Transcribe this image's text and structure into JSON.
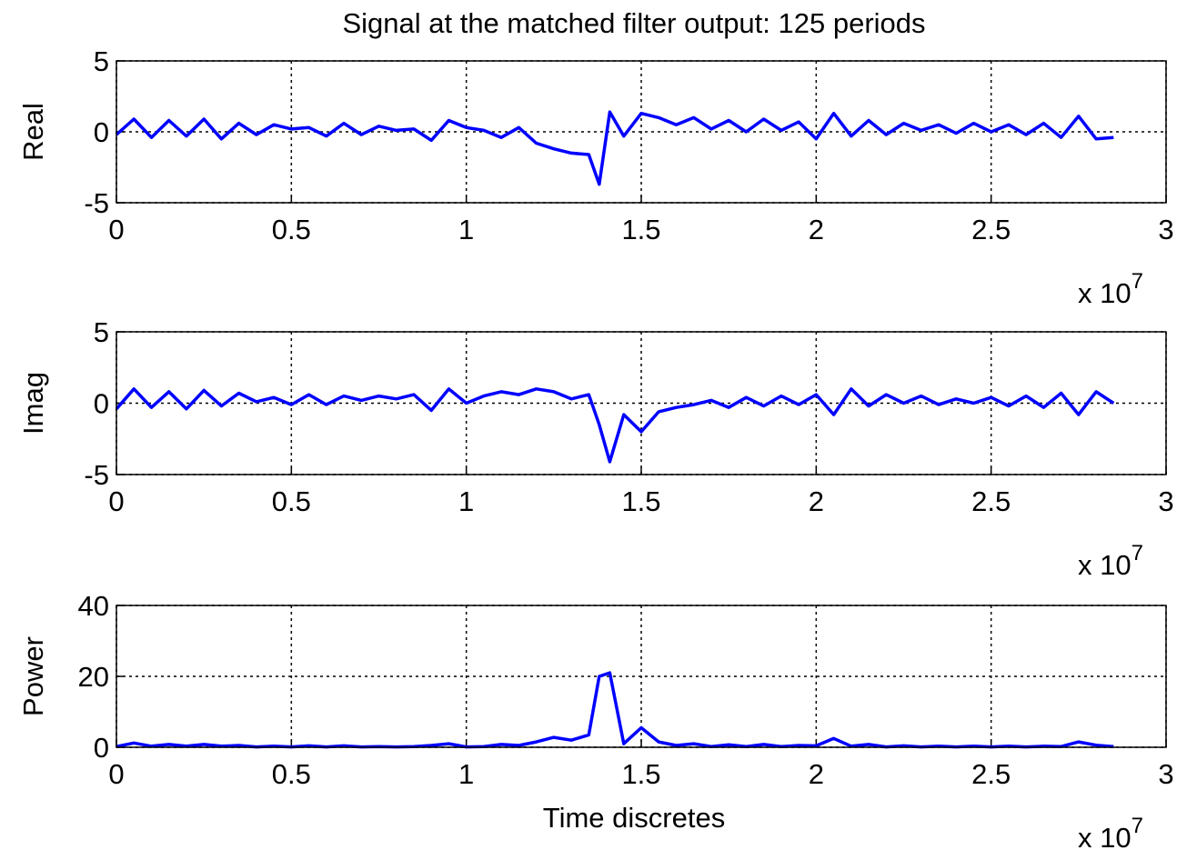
{
  "chart_data": [
    {
      "type": "line",
      "title": "Signal at the matched filter output: 125 periods",
      "ylabel": "Real",
      "x": [
        0,
        0.05,
        0.1,
        0.15,
        0.2,
        0.25,
        0.3,
        0.35,
        0.4,
        0.45,
        0.5,
        0.55,
        0.6,
        0.65,
        0.7,
        0.75,
        0.8,
        0.85,
        0.9,
        0.95,
        1.0,
        1.05,
        1.1,
        1.15,
        1.2,
        1.25,
        1.3,
        1.35,
        1.38,
        1.41,
        1.45,
        1.5,
        1.55,
        1.6,
        1.65,
        1.7,
        1.75,
        1.8,
        1.85,
        1.9,
        1.95,
        2.0,
        2.05,
        2.1,
        2.15,
        2.2,
        2.25,
        2.3,
        2.35,
        2.4,
        2.45,
        2.5,
        2.55,
        2.6,
        2.65,
        2.7,
        2.75,
        2.8,
        2.85
      ],
      "values": [
        -0.2,
        0.9,
        -0.4,
        0.8,
        -0.3,
        0.9,
        -0.5,
        0.6,
        -0.2,
        0.5,
        0.2,
        0.3,
        -0.3,
        0.6,
        -0.2,
        0.4,
        0.1,
        0.2,
        -0.6,
        0.8,
        0.3,
        0.1,
        -0.4,
        0.3,
        -0.8,
        -1.2,
        -1.5,
        -1.6,
        -3.7,
        1.4,
        -0.3,
        1.3,
        1.0,
        0.5,
        1.0,
        0.2,
        0.8,
        0,
        0.9,
        0.1,
        0.7,
        -0.5,
        1.3,
        -0.3,
        0.8,
        -0.2,
        0.6,
        0.1,
        0.5,
        -0.1,
        0.6,
        0,
        0.5,
        -0.2,
        0.6,
        -0.4,
        1.1,
        -0.5,
        -0.4
      ],
      "color": "#0000ff",
      "xlim": [
        0,
        3
      ],
      "xticks": [
        0,
        0.5,
        1,
        1.5,
        2,
        2.5,
        3
      ],
      "ylim": [
        -5,
        5
      ],
      "yticks": [
        -5,
        0,
        5
      ],
      "grid": true,
      "x_multiplier": "x 10",
      "x_exponent": "7"
    },
    {
      "type": "line",
      "ylabel": "Imag",
      "x": [
        0,
        0.05,
        0.1,
        0.15,
        0.2,
        0.25,
        0.3,
        0.35,
        0.4,
        0.45,
        0.5,
        0.55,
        0.6,
        0.65,
        0.7,
        0.75,
        0.8,
        0.85,
        0.9,
        0.95,
        1.0,
        1.05,
        1.1,
        1.15,
        1.2,
        1.25,
        1.3,
        1.35,
        1.38,
        1.41,
        1.45,
        1.5,
        1.55,
        1.6,
        1.65,
        1.7,
        1.75,
        1.8,
        1.85,
        1.9,
        1.95,
        2.0,
        2.05,
        2.1,
        2.15,
        2.2,
        2.25,
        2.3,
        2.35,
        2.4,
        2.45,
        2.5,
        2.55,
        2.6,
        2.65,
        2.7,
        2.75,
        2.8,
        2.85
      ],
      "values": [
        -0.4,
        1.0,
        -0.3,
        0.8,
        -0.4,
        0.9,
        -0.2,
        0.7,
        0.1,
        0.4,
        -0.1,
        0.6,
        -0.1,
        0.5,
        0.2,
        0.5,
        0.3,
        0.6,
        -0.5,
        1.0,
        0,
        0.5,
        0.8,
        0.6,
        1.0,
        0.8,
        0.3,
        0.6,
        -1.5,
        -4.1,
        -0.8,
        -2.0,
        -0.6,
        -0.3,
        -0.1,
        0.2,
        -0.3,
        0.4,
        -0.2,
        0.5,
        -0.1,
        0.6,
        -0.8,
        1.0,
        -0.2,
        0.6,
        0,
        0.5,
        -0.1,
        0.3,
        0,
        0.4,
        -0.2,
        0.5,
        -0.3,
        0.7,
        -0.8,
        0.8,
        0
      ],
      "color": "#0000ff",
      "xlim": [
        0,
        3
      ],
      "xticks": [
        0,
        0.5,
        1,
        1.5,
        2,
        2.5,
        3
      ],
      "ylim": [
        -5,
        5
      ],
      "yticks": [
        -5,
        0,
        5
      ],
      "grid": true,
      "x_multiplier": "x 10",
      "x_exponent": "7"
    },
    {
      "type": "line",
      "ylabel": "Power",
      "xlabel": "Time discretes",
      "x": [
        0,
        0.05,
        0.1,
        0.15,
        0.2,
        0.25,
        0.3,
        0.35,
        0.4,
        0.45,
        0.5,
        0.55,
        0.6,
        0.65,
        0.7,
        0.75,
        0.8,
        0.85,
        0.9,
        0.95,
        1.0,
        1.05,
        1.1,
        1.15,
        1.2,
        1.25,
        1.3,
        1.35,
        1.38,
        1.41,
        1.45,
        1.5,
        1.55,
        1.6,
        1.65,
        1.7,
        1.75,
        1.8,
        1.85,
        1.9,
        1.95,
        2.0,
        2.05,
        2.1,
        2.15,
        2.2,
        2.25,
        2.3,
        2.35,
        2.4,
        2.45,
        2.5,
        2.55,
        2.6,
        2.65,
        2.7,
        2.75,
        2.8,
        2.85
      ],
      "values": [
        0.2,
        1.2,
        0.3,
        0.8,
        0.3,
        0.8,
        0.3,
        0.5,
        0.1,
        0.3,
        0.1,
        0.4,
        0.1,
        0.4,
        0.1,
        0.2,
        0.1,
        0.2,
        0.5,
        1.0,
        0.1,
        0.2,
        0.8,
        0.5,
        1.5,
        2.8,
        2.0,
        3.5,
        20,
        21,
        1.0,
        5.5,
        1.5,
        0.5,
        1.0,
        0.2,
        0.7,
        0.2,
        0.8,
        0.2,
        0.5,
        0.4,
        2.5,
        0.3,
        0.8,
        0.1,
        0.4,
        0.1,
        0.3,
        0.1,
        0.3,
        0.1,
        0.3,
        0.1,
        0.3,
        0.2,
        1.5,
        0.6,
        0.2
      ],
      "color": "#0000ff",
      "xlim": [
        0,
        3
      ],
      "xticks": [
        0,
        0.5,
        1,
        1.5,
        2,
        2.5,
        3
      ],
      "ylim": [
        0,
        40
      ],
      "yticks": [
        0,
        20,
        40
      ],
      "grid": true,
      "x_multiplier": "x 10",
      "x_exponent": "7"
    }
  ]
}
